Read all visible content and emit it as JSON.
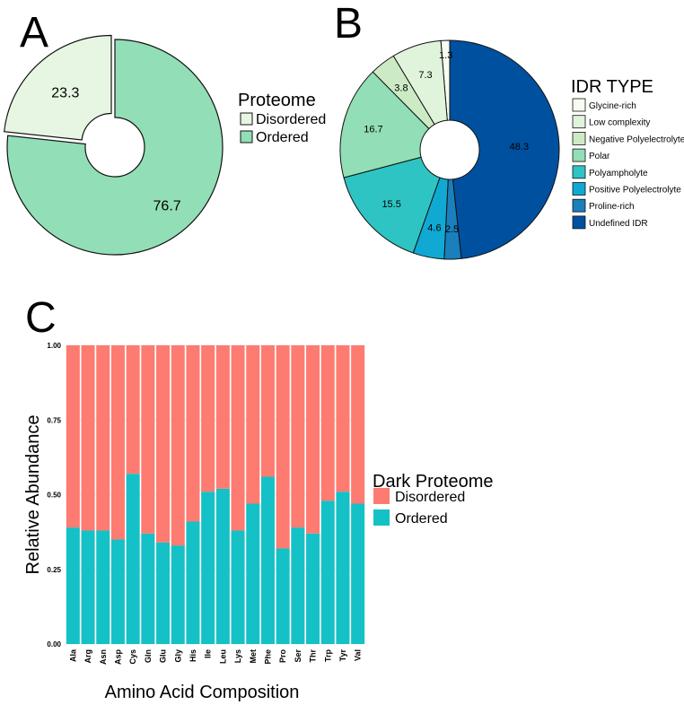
{
  "chart_data": [
    {
      "panel": "A",
      "type": "pie",
      "style": "donut",
      "legend_title": "Proteome",
      "legend_placement": "right",
      "labels": [
        "Disordered",
        "Ordered"
      ],
      "values": [
        23.3,
        76.7
      ],
      "value_labels": [
        "23.3",
        "76.7"
      ],
      "colors": [
        "#e6f6e3",
        "#92deb6"
      ]
    },
    {
      "panel": "B",
      "type": "pie",
      "style": "donut",
      "legend_title": "IDR TYPE",
      "legend_placement": "right",
      "labels": [
        "Glycine-rich",
        "Low complexity",
        "Negative Polyelectrolyte",
        "Polar",
        "Polyampholyte",
        "Positive Polyelectrolyte",
        "Proline-rich",
        "Undefined IDR"
      ],
      "values": [
        1.3,
        7.3,
        3.8,
        16.7,
        15.5,
        4.6,
        2.5,
        48.3
      ],
      "value_labels": [
        "1.3",
        "7.3",
        "3.8",
        "16.7",
        "15.5",
        "4.6",
        "2.5",
        "48.3"
      ],
      "colors": [
        "#f7fcf0",
        "#e0f3db",
        "#ccebc5",
        "#92deb6",
        "#2ec4c4",
        "#10a9d3",
        "#1a7fbd",
        "#0050a0"
      ]
    },
    {
      "panel": "C",
      "type": "bar",
      "stacked": true,
      "title": "",
      "xlabel": "Amino Acid Composition",
      "ylabel": "Relative Abundance",
      "ylim": [
        0,
        1
      ],
      "yticks": [
        "0.00",
        "0.25",
        "0.50",
        "0.75",
        "1.00"
      ],
      "legend_title": "Dark Proteome",
      "legend_placement": "right",
      "categories": [
        "Ala",
        "Arg",
        "Asn",
        "Asp",
        "Cys",
        "Gln",
        "Glu",
        "Gly",
        "His",
        "Ile",
        "Leu",
        "Lys",
        "Met",
        "Phe",
        "Pro",
        "Ser",
        "Thr",
        "Trp",
        "Tyr",
        "Val"
      ],
      "series": [
        {
          "name": "Ordered",
          "color": "#14c1c6",
          "values": [
            0.39,
            0.38,
            0.38,
            0.35,
            0.57,
            0.37,
            0.34,
            0.33,
            0.41,
            0.51,
            0.52,
            0.38,
            0.47,
            0.56,
            0.32,
            0.39,
            0.37,
            0.48,
            0.51,
            0.47
          ]
        },
        {
          "name": "Disordered",
          "color": "#fd7b70",
          "values": [
            0.61,
            0.62,
            0.62,
            0.65,
            0.43,
            0.63,
            0.66,
            0.67,
            0.59,
            0.49,
            0.48,
            0.62,
            0.53,
            0.44,
            0.68,
            0.61,
            0.63,
            0.52,
            0.49,
            0.53
          ]
        }
      ],
      "legend_order": [
        "Disordered",
        "Ordered"
      ]
    }
  ]
}
